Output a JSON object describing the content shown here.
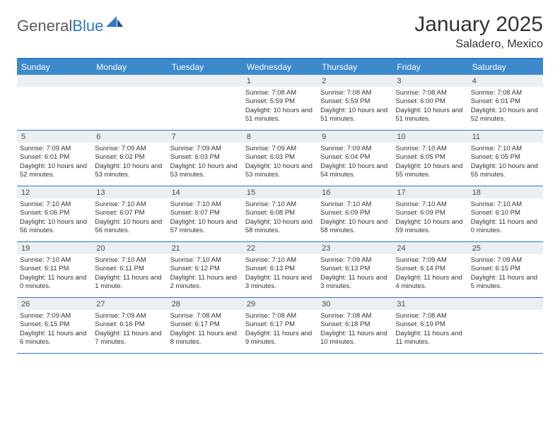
{
  "brand": {
    "part1": "General",
    "part2": "Blue"
  },
  "title": "January 2025",
  "location": "Saladero, Mexico",
  "colors": {
    "header_bg": "#3c8acb",
    "header_border": "#2e79c1",
    "daynum_bg": "#eceff1",
    "text": "#333333",
    "logo_gray": "#5a5a5a",
    "logo_blue": "#2e79c1"
  },
  "dow": [
    "Sunday",
    "Monday",
    "Tuesday",
    "Wednesday",
    "Thursday",
    "Friday",
    "Saturday"
  ],
  "weeks": [
    [
      {
        "n": "",
        "sr": "",
        "ss": "",
        "dl": ""
      },
      {
        "n": "",
        "sr": "",
        "ss": "",
        "dl": ""
      },
      {
        "n": "",
        "sr": "",
        "ss": "",
        "dl": ""
      },
      {
        "n": "1",
        "sr": "Sunrise: 7:08 AM",
        "ss": "Sunset: 5:59 PM",
        "dl": "Daylight: 10 hours and 51 minutes."
      },
      {
        "n": "2",
        "sr": "Sunrise: 7:08 AM",
        "ss": "Sunset: 5:59 PM",
        "dl": "Daylight: 10 hours and 51 minutes."
      },
      {
        "n": "3",
        "sr": "Sunrise: 7:08 AM",
        "ss": "Sunset: 6:00 PM",
        "dl": "Daylight: 10 hours and 51 minutes."
      },
      {
        "n": "4",
        "sr": "Sunrise: 7:08 AM",
        "ss": "Sunset: 6:01 PM",
        "dl": "Daylight: 10 hours and 52 minutes."
      }
    ],
    [
      {
        "n": "5",
        "sr": "Sunrise: 7:09 AM",
        "ss": "Sunset: 6:01 PM",
        "dl": "Daylight: 10 hours and 52 minutes."
      },
      {
        "n": "6",
        "sr": "Sunrise: 7:09 AM",
        "ss": "Sunset: 6:02 PM",
        "dl": "Daylight: 10 hours and 53 minutes."
      },
      {
        "n": "7",
        "sr": "Sunrise: 7:09 AM",
        "ss": "Sunset: 6:03 PM",
        "dl": "Daylight: 10 hours and 53 minutes."
      },
      {
        "n": "8",
        "sr": "Sunrise: 7:09 AM",
        "ss": "Sunset: 6:03 PM",
        "dl": "Daylight: 10 hours and 53 minutes."
      },
      {
        "n": "9",
        "sr": "Sunrise: 7:09 AM",
        "ss": "Sunset: 6:04 PM",
        "dl": "Daylight: 10 hours and 54 minutes."
      },
      {
        "n": "10",
        "sr": "Sunrise: 7:10 AM",
        "ss": "Sunset: 6:05 PM",
        "dl": "Daylight: 10 hours and 55 minutes."
      },
      {
        "n": "11",
        "sr": "Sunrise: 7:10 AM",
        "ss": "Sunset: 6:05 PM",
        "dl": "Daylight: 10 hours and 55 minutes."
      }
    ],
    [
      {
        "n": "12",
        "sr": "Sunrise: 7:10 AM",
        "ss": "Sunset: 6:06 PM",
        "dl": "Daylight: 10 hours and 56 minutes."
      },
      {
        "n": "13",
        "sr": "Sunrise: 7:10 AM",
        "ss": "Sunset: 6:07 PM",
        "dl": "Daylight: 10 hours and 56 minutes."
      },
      {
        "n": "14",
        "sr": "Sunrise: 7:10 AM",
        "ss": "Sunset: 6:07 PM",
        "dl": "Daylight: 10 hours and 57 minutes."
      },
      {
        "n": "15",
        "sr": "Sunrise: 7:10 AM",
        "ss": "Sunset: 6:08 PM",
        "dl": "Daylight: 10 hours and 58 minutes."
      },
      {
        "n": "16",
        "sr": "Sunrise: 7:10 AM",
        "ss": "Sunset: 6:09 PM",
        "dl": "Daylight: 10 hours and 58 minutes."
      },
      {
        "n": "17",
        "sr": "Sunrise: 7:10 AM",
        "ss": "Sunset: 6:09 PM",
        "dl": "Daylight: 10 hours and 59 minutes."
      },
      {
        "n": "18",
        "sr": "Sunrise: 7:10 AM",
        "ss": "Sunset: 6:10 PM",
        "dl": "Daylight: 11 hours and 0 minutes."
      }
    ],
    [
      {
        "n": "19",
        "sr": "Sunrise: 7:10 AM",
        "ss": "Sunset: 6:11 PM",
        "dl": "Daylight: 11 hours and 0 minutes."
      },
      {
        "n": "20",
        "sr": "Sunrise: 7:10 AM",
        "ss": "Sunset: 6:11 PM",
        "dl": "Daylight: 11 hours and 1 minute."
      },
      {
        "n": "21",
        "sr": "Sunrise: 7:10 AM",
        "ss": "Sunset: 6:12 PM",
        "dl": "Daylight: 11 hours and 2 minutes."
      },
      {
        "n": "22",
        "sr": "Sunrise: 7:10 AM",
        "ss": "Sunset: 6:13 PM",
        "dl": "Daylight: 11 hours and 3 minutes."
      },
      {
        "n": "23",
        "sr": "Sunrise: 7:09 AM",
        "ss": "Sunset: 6:13 PM",
        "dl": "Daylight: 11 hours and 3 minutes."
      },
      {
        "n": "24",
        "sr": "Sunrise: 7:09 AM",
        "ss": "Sunset: 6:14 PM",
        "dl": "Daylight: 11 hours and 4 minutes."
      },
      {
        "n": "25",
        "sr": "Sunrise: 7:09 AM",
        "ss": "Sunset: 6:15 PM",
        "dl": "Daylight: 11 hours and 5 minutes."
      }
    ],
    [
      {
        "n": "26",
        "sr": "Sunrise: 7:09 AM",
        "ss": "Sunset: 6:15 PM",
        "dl": "Daylight: 11 hours and 6 minutes."
      },
      {
        "n": "27",
        "sr": "Sunrise: 7:09 AM",
        "ss": "Sunset: 6:16 PM",
        "dl": "Daylight: 11 hours and 7 minutes."
      },
      {
        "n": "28",
        "sr": "Sunrise: 7:08 AM",
        "ss": "Sunset: 6:17 PM",
        "dl": "Daylight: 11 hours and 8 minutes."
      },
      {
        "n": "29",
        "sr": "Sunrise: 7:08 AM",
        "ss": "Sunset: 6:17 PM",
        "dl": "Daylight: 11 hours and 9 minutes."
      },
      {
        "n": "30",
        "sr": "Sunrise: 7:08 AM",
        "ss": "Sunset: 6:18 PM",
        "dl": "Daylight: 11 hours and 10 minutes."
      },
      {
        "n": "31",
        "sr": "Sunrise: 7:08 AM",
        "ss": "Sunset: 6:19 PM",
        "dl": "Daylight: 11 hours and 11 minutes."
      },
      {
        "n": "",
        "sr": "",
        "ss": "",
        "dl": ""
      }
    ]
  ]
}
